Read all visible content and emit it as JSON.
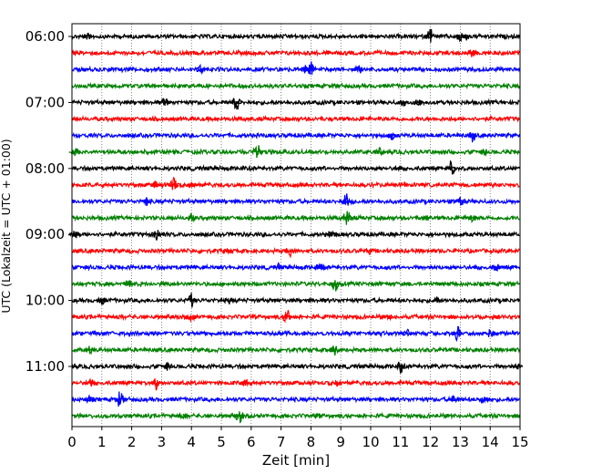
{
  "chart_data": {
    "type": "line",
    "title": "",
    "xlabel": "Zeit  [min]",
    "ylabel": "UTC (Lokalzeit = UTC + 01:00)",
    "xlim": [
      0,
      15
    ],
    "x_ticks": [
      "0",
      "1",
      "2",
      "3",
      "4",
      "5",
      "6",
      "7",
      "8",
      "9",
      "10",
      "11",
      "12",
      "13",
      "14",
      "15"
    ],
    "y_ticks": [
      "06:00",
      "07:00",
      "08:00",
      "09:00",
      "10:00",
      "11:00"
    ],
    "grid": "vertical dotted",
    "trace_color_cycle": [
      "#000000",
      "#ff0000",
      "#0000ff",
      "#008000"
    ],
    "trace_interval_minutes": 15,
    "start_time": "06:00",
    "series": [
      {
        "start": "06:00",
        "events_min": [
          0.5,
          12.0,
          13.0,
          13.2
        ]
      },
      {
        "start": "06:15",
        "events_min": [
          13.4
        ]
      },
      {
        "start": "06:30",
        "events_min": [
          4.3,
          8.0,
          7.8,
          9.6
        ]
      },
      {
        "start": "06:45",
        "events_min": []
      },
      {
        "start": "07:00",
        "events_min": [
          3.1,
          5.5,
          11.1,
          11.6
        ]
      },
      {
        "start": "07:15",
        "events_min": []
      },
      {
        "start": "07:30",
        "events_min": [
          10.7,
          13.4
        ]
      },
      {
        "start": "07:45",
        "events_min": [
          0.1,
          6.2,
          10.3,
          13.8
        ]
      },
      {
        "start": "08:00",
        "events_min": [
          10.9,
          12.7
        ]
      },
      {
        "start": "08:15",
        "events_min": [
          2.8,
          3.4,
          4.0
        ]
      },
      {
        "start": "08:30",
        "events_min": [
          2.5,
          9.2,
          13.0
        ]
      },
      {
        "start": "08:45",
        "events_min": [
          4.0,
          9.2,
          11.8,
          13.4
        ]
      },
      {
        "start": "09:00",
        "events_min": [
          0.1,
          2.8,
          8.7
        ]
      },
      {
        "start": "09:15",
        "events_min": [
          5.2,
          7.3,
          10.0
        ]
      },
      {
        "start": "09:30",
        "events_min": [
          6.9,
          8.3,
          14.2
        ]
      },
      {
        "start": "09:45",
        "events_min": [
          1.9,
          8.8
        ]
      },
      {
        "start": "10:00",
        "events_min": [
          1.0,
          4.0,
          5.3,
          12.2
        ]
      },
      {
        "start": "10:15",
        "events_min": [
          4.0,
          7.2,
          10.6
        ]
      },
      {
        "start": "10:30",
        "events_min": [
          11.2,
          12.9,
          14.0
        ]
      },
      {
        "start": "10:45",
        "events_min": [
          0.6,
          8.8
        ]
      },
      {
        "start": "11:00",
        "events_min": [
          3.2,
          11.0,
          14.9
        ]
      },
      {
        "start": "11:15",
        "events_min": [
          0.6,
          2.8,
          5.8,
          8.9
        ]
      },
      {
        "start": "11:30",
        "events_min": [
          0.6,
          1.6,
          12.8,
          13.8
        ]
      },
      {
        "start": "11:45",
        "events_min": [
          3.7,
          5.6,
          8.2
        ]
      }
    ]
  }
}
